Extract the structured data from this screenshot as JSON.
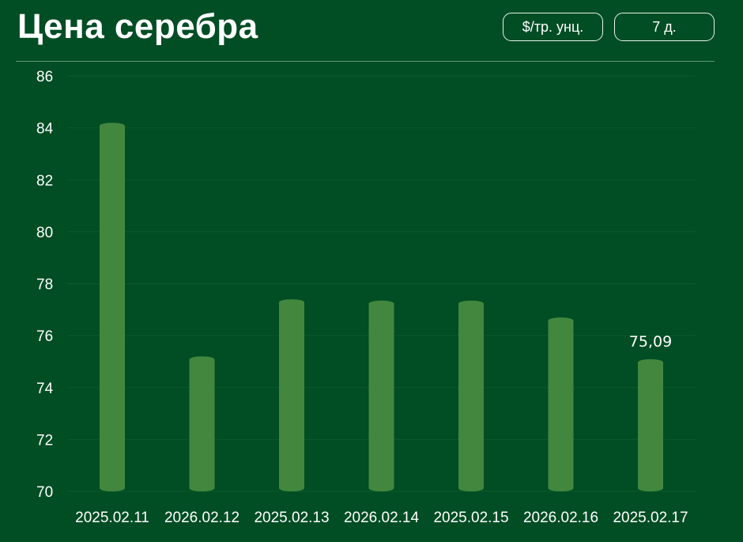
{
  "header": {
    "title": "Цена серебра",
    "unit_button": "$/тр. унц.",
    "period_button": "7 д."
  },
  "colors": {
    "background": "#014d24",
    "bar": "#43873f",
    "grid": "#0d5a2a",
    "text": "#ffffff"
  },
  "chart_data": {
    "type": "bar",
    "title": "Цена серебра",
    "xlabel": "",
    "ylabel": "",
    "categories": [
      "2025.02.11",
      "2026.02.12",
      "2025.02.13",
      "2026.02.14",
      "2025.02.15",
      "2026.02.16",
      "2025.02.17"
    ],
    "values": [
      84.2,
      75.2,
      77.4,
      77.35,
      77.35,
      76.7,
      75.09
    ],
    "ylim": [
      70,
      86
    ],
    "yticks": [
      70,
      72,
      74,
      76,
      78,
      80,
      82,
      84,
      86
    ],
    "data_labels": [
      {
        "index": 6,
        "text": "75,09"
      }
    ],
    "grid": true,
    "legend": "none"
  }
}
